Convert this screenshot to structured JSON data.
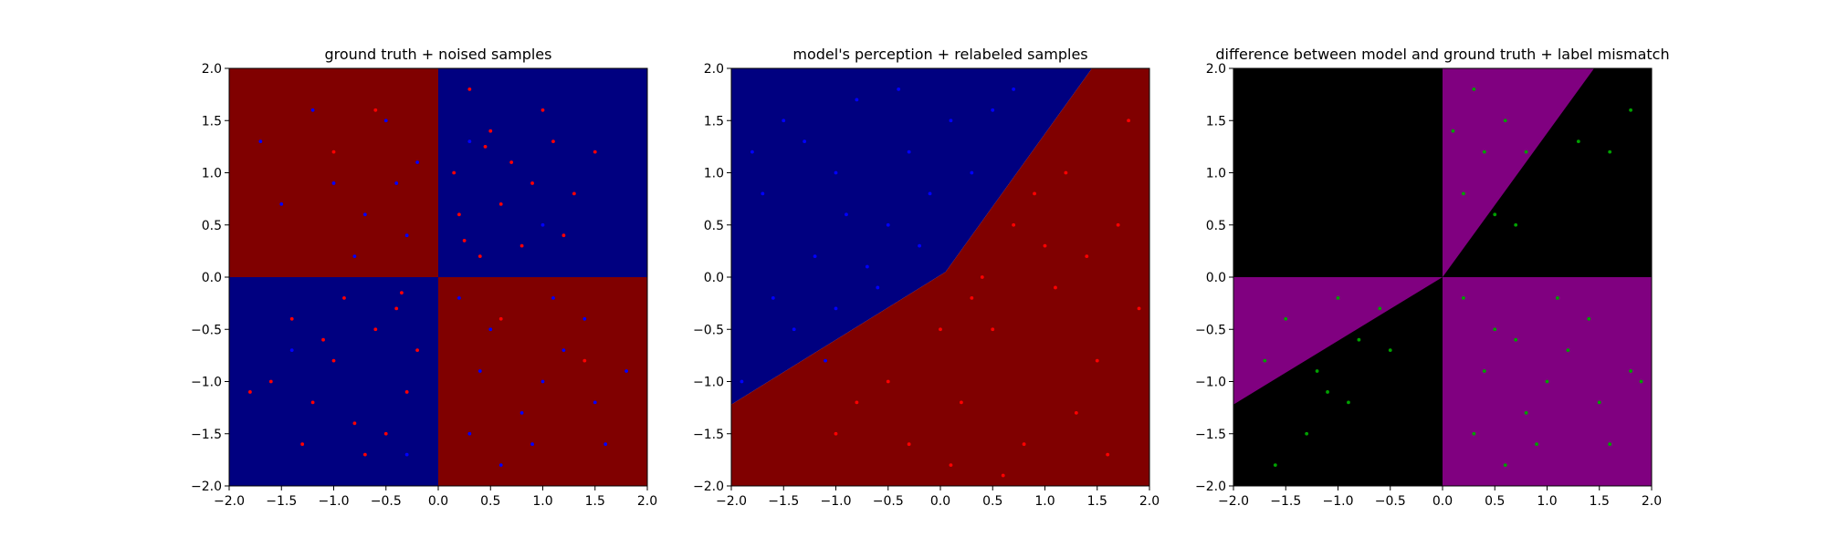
{
  "chart_data": [
    {
      "type": "scatter",
      "title": "ground truth + noised samples",
      "xlim": [
        -2.0,
        2.0
      ],
      "ylim": [
        -2.0,
        2.0
      ],
      "xticks": [
        "−2.0",
        "−1.5",
        "−1.0",
        "−0.5",
        "0.0",
        "0.5",
        "1.0",
        "1.5",
        "2.0"
      ],
      "yticks": [
        "−2.0",
        "−1.5",
        "−1.0",
        "−0.5",
        "0.0",
        "0.5",
        "1.0",
        "1.5",
        "2.0"
      ],
      "background_regions": [
        {
          "polygon": [
            [
              -2,
              0
            ],
            [
              0,
              0
            ],
            [
              0,
              2
            ],
            [
              -2,
              2
            ]
          ],
          "color": "#800000"
        },
        {
          "polygon": [
            [
              0,
              0
            ],
            [
              2,
              0
            ],
            [
              2,
              2
            ],
            [
              0,
              2
            ]
          ],
          "color": "#000080"
        },
        {
          "polygon": [
            [
              -2,
              -2
            ],
            [
              0,
              -2
            ],
            [
              0,
              0
            ],
            [
              -2,
              0
            ]
          ],
          "color": "#000080"
        },
        {
          "polygon": [
            [
              0,
              -2
            ],
            [
              2,
              -2
            ],
            [
              2,
              0
            ],
            [
              0,
              0
            ]
          ],
          "color": "#800000"
        }
      ],
      "series": [
        {
          "color": "#ff0000",
          "points": [
            [
              0.3,
              1.8
            ],
            [
              0.5,
              1.4
            ],
            [
              0.7,
              1.1
            ],
            [
              0.2,
              0.6
            ],
            [
              0.9,
              0.9
            ],
            [
              1.2,
              0.4
            ],
            [
              0.4,
              0.2
            ],
            [
              1.5,
              1.2
            ],
            [
              0.6,
              0.7
            ],
            [
              1.0,
              1.6
            ],
            [
              0.15,
              1.0
            ],
            [
              1.3,
              0.8
            ],
            [
              0.8,
              0.3
            ],
            [
              0.45,
              1.25
            ],
            [
              1.1,
              1.3
            ],
            [
              0.25,
              0.35
            ],
            [
              -1.4,
              -0.4
            ],
            [
              -1.0,
              -0.8
            ],
            [
              -0.6,
              -0.5
            ],
            [
              -0.3,
              -1.1
            ],
            [
              -0.8,
              -1.4
            ],
            [
              -1.2,
              -1.2
            ],
            [
              -0.4,
              -0.3
            ],
            [
              -0.9,
              -0.2
            ],
            [
              -1.6,
              -1.0
            ],
            [
              -0.2,
              -0.7
            ],
            [
              -0.7,
              -1.7
            ],
            [
              -1.1,
              -0.6
            ],
            [
              -0.5,
              -1.5
            ],
            [
              -1.8,
              -1.1
            ],
            [
              -0.35,
              -0.15
            ],
            [
              -1.3,
              -1.6
            ],
            [
              -0.6,
              1.6
            ],
            [
              -1.0,
              1.2
            ],
            [
              0.6,
              -0.4
            ],
            [
              1.4,
              -0.8
            ]
          ]
        },
        {
          "color": "#0000ff",
          "points": [
            [
              -0.5,
              1.5
            ],
            [
              -1.0,
              0.9
            ],
            [
              -0.3,
              0.4
            ],
            [
              -1.5,
              0.7
            ],
            [
              -0.8,
              0.2
            ],
            [
              -1.2,
              1.6
            ],
            [
              -0.2,
              1.1
            ],
            [
              -0.7,
              0.6
            ],
            [
              -1.7,
              1.3
            ],
            [
              -0.4,
              0.9
            ],
            [
              0.5,
              -0.5
            ],
            [
              1.0,
              -1.0
            ],
            [
              0.3,
              -1.5
            ],
            [
              1.4,
              -0.4
            ],
            [
              0.8,
              -1.3
            ],
            [
              1.6,
              -1.6
            ],
            [
              0.2,
              -0.2
            ],
            [
              1.2,
              -0.7
            ],
            [
              0.6,
              -1.8
            ],
            [
              1.8,
              -0.9
            ],
            [
              0.4,
              -0.9
            ],
            [
              1.1,
              -0.2
            ],
            [
              0.9,
              -1.6
            ],
            [
              1.5,
              -1.2
            ],
            [
              -1.4,
              -0.7
            ],
            [
              -0.3,
              -1.7
            ],
            [
              1.0,
              0.5
            ],
            [
              0.3,
              1.3
            ]
          ]
        }
      ]
    },
    {
      "type": "scatter",
      "title": "model's perception + relabeled samples",
      "xlim": [
        -2.0,
        2.0
      ],
      "ylim": [
        -2.0,
        2.0
      ],
      "xticks": [
        "−2.0",
        "−1.5",
        "−1.0",
        "−0.5",
        "0.0",
        "0.5",
        "1.0",
        "1.5",
        "2.0"
      ],
      "yticks": [
        "−2.0",
        "−1.5",
        "−1.0",
        "−0.5",
        "0.0",
        "0.5",
        "1.0",
        "1.5",
        "2.0"
      ],
      "background_regions": [
        {
          "polygon": [
            [
              -2,
              -1.22
            ],
            [
              0.05,
              0.05
            ],
            [
              1.45,
              2
            ],
            [
              -2,
              2
            ]
          ],
          "color": "#000080"
        },
        {
          "polygon": [
            [
              -2,
              -2
            ],
            [
              2,
              -2
            ],
            [
              2,
              2
            ],
            [
              1.45,
              2
            ],
            [
              0.05,
              0.05
            ],
            [
              -2,
              -1.22
            ]
          ],
          "color": "#800000"
        }
      ],
      "series": [
        {
          "color": "#0000ff",
          "points": [
            [
              -1.5,
              1.5
            ],
            [
              -1.0,
              1.0
            ],
            [
              -0.5,
              0.5
            ],
            [
              -1.2,
              0.2
            ],
            [
              -0.3,
              1.2
            ],
            [
              -0.8,
              1.7
            ],
            [
              -1.7,
              0.8
            ],
            [
              -0.6,
              -0.1
            ],
            [
              -1.4,
              -0.5
            ],
            [
              -0.2,
              0.3
            ],
            [
              0.3,
              1.0
            ],
            [
              0.5,
              1.6
            ],
            [
              -1.0,
              -0.3
            ],
            [
              -1.8,
              1.2
            ],
            [
              -0.4,
              1.8
            ],
            [
              -0.9,
              0.6
            ],
            [
              -1.3,
              1.3
            ],
            [
              0.1,
              1.5
            ],
            [
              -0.7,
              0.1
            ],
            [
              -1.6,
              -0.2
            ],
            [
              0.7,
              1.8
            ],
            [
              -0.1,
              0.8
            ],
            [
              -1.1,
              -0.8
            ],
            [
              -1.9,
              -1.0
            ]
          ]
        },
        {
          "color": "#ff0000",
          "points": [
            [
              0.5,
              -0.5
            ],
            [
              1.0,
              0.3
            ],
            [
              0.2,
              -1.2
            ],
            [
              1.5,
              -0.8
            ],
            [
              0.8,
              -1.6
            ],
            [
              1.2,
              1.0
            ],
            [
              0.4,
              0.0
            ],
            [
              1.7,
              0.5
            ],
            [
              0.0,
              -0.5
            ],
            [
              -0.5,
              -1.0
            ],
            [
              -1.0,
              -1.5
            ],
            [
              0.6,
              -1.9
            ],
            [
              1.3,
              -1.3
            ],
            [
              0.9,
              0.8
            ],
            [
              1.8,
              1.5
            ],
            [
              0.3,
              -0.2
            ],
            [
              -0.3,
              -1.6
            ],
            [
              1.1,
              -0.1
            ],
            [
              1.6,
              -1.7
            ],
            [
              -0.8,
              -1.2
            ],
            [
              0.7,
              0.5
            ],
            [
              1.9,
              -0.3
            ],
            [
              0.1,
              -1.8
            ],
            [
              1.4,
              0.2
            ]
          ]
        }
      ]
    },
    {
      "type": "scatter",
      "title": "difference between model and ground truth + label mismatch",
      "xlim": [
        -2.0,
        2.0
      ],
      "ylim": [
        -2.0,
        2.0
      ],
      "xticks": [
        "−2.0",
        "−1.5",
        "−1.0",
        "−0.5",
        "0.0",
        "0.5",
        "1.0",
        "1.5",
        "2.0"
      ],
      "yticks": [
        "−2.0",
        "−1.5",
        "−1.0",
        "−0.5",
        "0.0",
        "0.5",
        "1.0",
        "1.5",
        "2.0"
      ],
      "background_regions": [
        {
          "polygon": [
            [
              -2,
              -2
            ],
            [
              2,
              -2
            ],
            [
              2,
              2
            ],
            [
              -2,
              2
            ]
          ],
          "color": "#000000"
        },
        {
          "polygon": [
            [
              0,
              0
            ],
            [
              0,
              2
            ],
            [
              1.45,
              2
            ]
          ],
          "color": "#800080"
        },
        {
          "polygon": [
            [
              -2,
              0
            ],
            [
              0,
              0
            ],
            [
              -2,
              -1.22
            ]
          ],
          "color": "#800080"
        },
        {
          "polygon": [
            [
              0,
              -2
            ],
            [
              2,
              -2
            ],
            [
              2,
              0
            ],
            [
              0,
              0
            ]
          ],
          "color": "#800080"
        }
      ],
      "series": [
        {
          "color": "#00a000",
          "points": [
            [
              0.3,
              1.8
            ],
            [
              0.4,
              1.2
            ],
            [
              0.6,
              1.5
            ],
            [
              0.2,
              0.8
            ],
            [
              0.5,
              0.6
            ],
            [
              0.8,
              1.2
            ],
            [
              1.3,
              1.3
            ],
            [
              1.6,
              1.2
            ],
            [
              1.8,
              1.6
            ],
            [
              0.1,
              1.4
            ],
            [
              0.7,
              0.5
            ],
            [
              -1.5,
              -0.4
            ],
            [
              -1.0,
              -0.2
            ],
            [
              -0.8,
              -0.6
            ],
            [
              -1.2,
              -0.9
            ],
            [
              -0.5,
              -0.7
            ],
            [
              -1.6,
              -1.8
            ],
            [
              -1.3,
              -1.5
            ],
            [
              -0.9,
              -1.2
            ],
            [
              -1.7,
              -0.8
            ],
            [
              -0.6,
              -0.3
            ],
            [
              -1.1,
              -1.1
            ],
            [
              0.5,
              -0.5
            ],
            [
              1.0,
              -1.0
            ],
            [
              0.3,
              -1.5
            ],
            [
              1.4,
              -0.4
            ],
            [
              0.8,
              -1.3
            ],
            [
              1.6,
              -1.6
            ],
            [
              1.2,
              -0.7
            ],
            [
              0.6,
              -1.8
            ],
            [
              1.8,
              -0.9
            ],
            [
              0.4,
              -0.9
            ],
            [
              1.1,
              -0.2
            ],
            [
              0.9,
              -1.6
            ],
            [
              1.5,
              -1.2
            ],
            [
              1.9,
              -1.0
            ],
            [
              0.2,
              -0.2
            ],
            [
              0.7,
              -0.6
            ]
          ]
        }
      ]
    }
  ]
}
